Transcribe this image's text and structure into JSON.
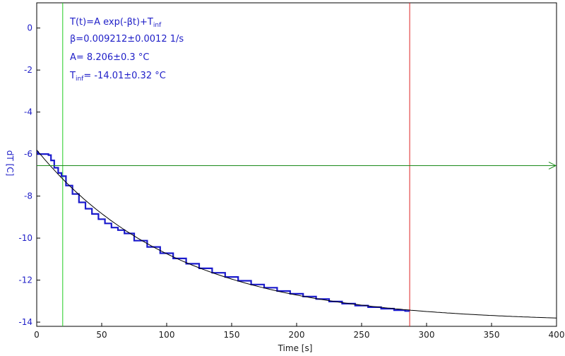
{
  "chart_data": {
    "type": "line",
    "title": "",
    "xlabel": "Time [s]",
    "ylabel": "dT [C]",
    "xlim": [
      0,
      400
    ],
    "ylim": [
      -14.2,
      1.2
    ],
    "x_ticks": [
      0,
      50,
      100,
      150,
      200,
      250,
      300,
      350,
      400
    ],
    "y_ticks": [
      0,
      -2,
      -4,
      -6,
      -8,
      -10,
      -12,
      -14
    ],
    "grid": false,
    "annotations": {
      "formula_main": "T(t)=A exp(-βt)+T",
      "formula_sub": "inf",
      "beta": "β=0.009212±0.0012 1/s",
      "amplitude": "A= 8.206±0.3 °C",
      "tinf_label": "T",
      "tinf_sub": "inf",
      "tinf_value": "= -14.01±0.32 °C"
    },
    "markers": {
      "green_vertical_x": 20,
      "red_vertical_x": 287,
      "horizontal_arrow_y": -6.55
    },
    "fit": {
      "A": 8.206,
      "beta": 0.009212,
      "T_inf": -14.01,
      "x_range": [
        0,
        400
      ]
    },
    "series": [
      {
        "kind": "measured",
        "x": [
          0,
          2,
          4,
          6,
          8,
          10,
          12,
          15,
          18,
          20,
          25,
          30,
          35,
          40,
          45,
          50,
          55,
          60,
          65,
          70,
          80,
          90,
          100,
          110,
          120,
          130,
          140,
          150,
          160,
          170,
          180,
          190,
          200,
          210,
          220,
          230,
          240,
          250,
          260,
          270,
          280,
          287
        ],
        "y": [
          -5.9,
          -6.0,
          -6.0,
          -6.0,
          -6.0,
          -6.05,
          -6.3,
          -6.65,
          -6.9,
          -7.05,
          -7.5,
          -7.9,
          -8.3,
          -8.6,
          -8.85,
          -9.1,
          -9.3,
          -9.5,
          -9.62,
          -9.78,
          -10.12,
          -10.42,
          -10.72,
          -10.97,
          -11.22,
          -11.44,
          -11.65,
          -11.85,
          -12.03,
          -12.21,
          -12.36,
          -12.52,
          -12.65,
          -12.78,
          -12.9,
          -13.02,
          -13.12,
          -13.21,
          -13.29,
          -13.36,
          -13.43,
          -13.47
        ]
      }
    ],
    "colors": {
      "measured": "#1a1acc",
      "fit": "#000000",
      "green_marker": "#22cc22",
      "red_marker": "#dd2222",
      "arrow": "#1a8a1a",
      "text": "#2020c8",
      "axis_text": "#1a1a1a"
    }
  }
}
